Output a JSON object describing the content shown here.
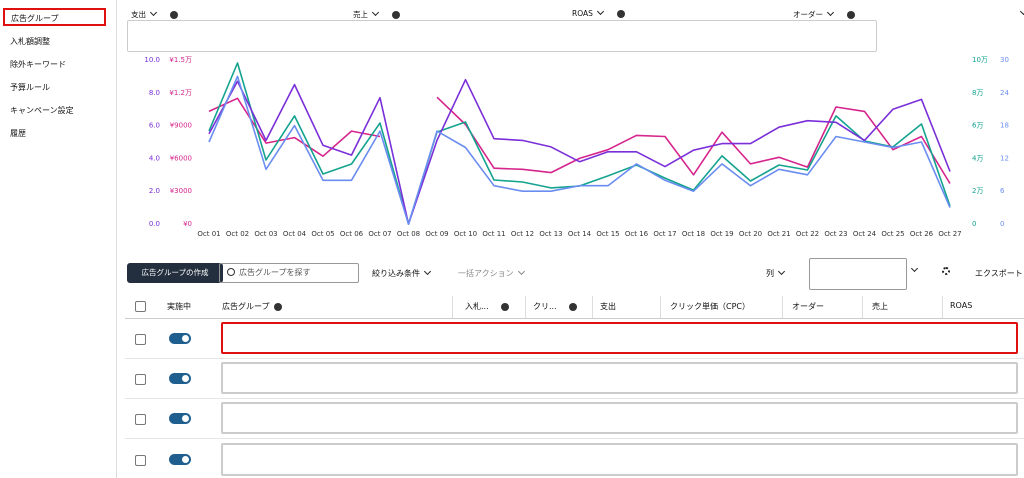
{
  "sidebar": {
    "items": [
      "広告グループ",
      "入札額調整",
      "除外キーワード",
      "予算ルール",
      "キャンペーン設定",
      "履歴"
    ]
  },
  "chart_data": {
    "type": "line",
    "categories": [
      "Oct 01",
      "Oct 02",
      "Oct 03",
      "Oct 04",
      "Oct 05",
      "Oct 06",
      "Oct 07",
      "Oct 08",
      "Oct 09",
      "Oct 10",
      "Oct 11",
      "Oct 12",
      "Oct 13",
      "Oct 14",
      "Oct 15",
      "Oct 16",
      "Oct 17",
      "Oct 18",
      "Oct 19",
      "Oct 20",
      "Oct 21",
      "Oct 22",
      "Oct 23",
      "Oct 24",
      "Oct 25",
      "Oct 26",
      "Oct 27"
    ],
    "series": [
      {
        "name": "支出",
        "color": "#d6258c",
        "axis": "left",
        "ylim": [
          0,
          15000
        ],
        "yticks": [
          {
            "value": 0,
            "label": "¥0"
          },
          {
            "value": 3000,
            "label": "¥3000"
          },
          {
            "value": 6000,
            "label": "¥6000"
          },
          {
            "value": 9000,
            "label": "¥9000"
          },
          {
            "value": 12000,
            "label": "¥1.2万"
          },
          {
            "value": 15000,
            "label": "¥1.5万"
          }
        ],
        "values": [
          10300,
          11500,
          7400,
          7900,
          6200,
          8500,
          8000,
          null,
          11600,
          9100,
          5100,
          5000,
          4700,
          6000,
          6800,
          8100,
          8000,
          4500,
          8400,
          5500,
          6100,
          5200,
          10700,
          10300,
          6800,
          8000,
          3700
        ]
      },
      {
        "name": "売上",
        "color": "#14a38f",
        "axis": "right",
        "ylim": [
          0,
          100000
        ],
        "yticks": [
          0,
          {
            "value": 20000,
            "label": "2万"
          },
          {
            "value": 40000,
            "label": "4万"
          },
          {
            "value": 60000,
            "label": "6万"
          },
          {
            "value": 80000,
            "label": "8万"
          },
          {
            "value": 100000,
            "label": "10万"
          }
        ],
        "values": [
          56700,
          98200,
          39000,
          65900,
          30500,
          36600,
          61600,
          0,
          56100,
          62200,
          26800,
          25600,
          22000,
          23200,
          29300,
          36000,
          28000,
          20700,
          41500,
          26200,
          36000,
          32900,
          65900,
          50600,
          47000,
          61000,
          11000
        ]
      },
      {
        "name": "ROAS",
        "color": "#7a2fd8",
        "axis": "left",
        "ylim": [
          0,
          10
        ],
        "yticks": [
          {
            "value": 0,
            "label": "0.0"
          },
          {
            "value": 2,
            "label": "2.0"
          },
          {
            "value": 4,
            "label": "4.0"
          },
          {
            "value": 6,
            "label": "6.0"
          },
          {
            "value": 8,
            "label": "8.0"
          },
          {
            "value": 10,
            "label": "10.0"
          }
        ],
        "values": [
          5.5,
          8.7,
          5.1,
          8.5,
          4.8,
          4.2,
          7.7,
          0,
          5.1,
          8.8,
          5.2,
          5.1,
          4.7,
          3.8,
          4.4,
          4.4,
          3.5,
          4.5,
          4.9,
          4.9,
          5.9,
          6.3,
          6.2,
          5.1,
          7.0,
          7.6,
          3.2
        ]
      },
      {
        "name": "オーダー",
        "color": "#6b8df0",
        "axis": "right",
        "ylim": [
          0,
          30
        ],
        "yticks": [
          0,
          6,
          12,
          18,
          24,
          30
        ],
        "values": [
          15,
          27,
          10,
          18,
          8,
          8,
          17,
          0,
          17,
          14,
          7,
          6,
          6,
          7,
          7,
          11,
          8,
          6,
          11,
          7,
          10,
          9,
          16,
          15,
          14,
          15,
          3
        ]
      }
    ]
  },
  "toolbar": {
    "create": "広告グループの作成",
    "search": "広告グループを探す",
    "filter": "絞り込み条件",
    "bulk": "一括アクション",
    "columns": "列",
    "export": "エクスポート"
  },
  "table": {
    "headers": [
      "実施中",
      "広告グループ",
      "入札...",
      "クリ...",
      "支出",
      "クリック単価（CPC）",
      "オーダー",
      "売上",
      "ROAS"
    ]
  }
}
